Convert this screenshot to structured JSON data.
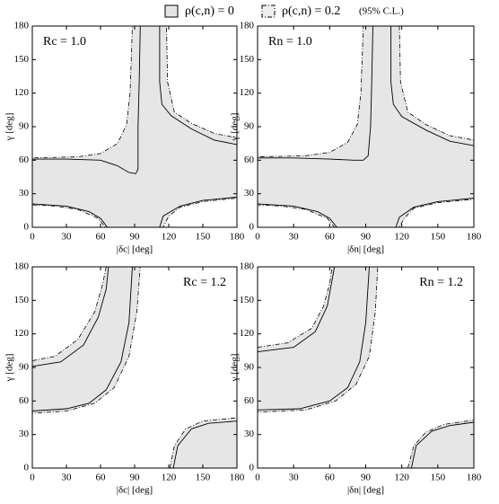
{
  "legend": {
    "items": [
      {
        "label": "ρ(c,n) = 0",
        "style": "solid",
        "color": "#e4e4e4"
      },
      {
        "label": "ρ(c,n) = 0.2",
        "style": "dashed",
        "color": "#eeeeee"
      }
    ],
    "note": "(95% C.L.)"
  },
  "chart_data": [
    {
      "type": "contour",
      "annotation": "Rc = 1.0",
      "annotation_corner": "top-left",
      "xlabel": "|δc|  [deg]",
      "ylabel": "γ  [deg]",
      "xlim": [
        0,
        180
      ],
      "ylim": [
        0,
        180
      ],
      "xticks": [
        0,
        30,
        60,
        90,
        120,
        150,
        180
      ],
      "yticks": [
        0,
        30,
        60,
        90,
        120,
        150,
        180
      ],
      "series": [
        {
          "style": "dashed",
          "color": "#e6e6e6",
          "regions": [
            {
              "x": [
                88,
                118,
                119,
                125,
                140,
                160,
                180,
                180,
                150,
                130,
                120,
                115,
                64,
                58,
                40,
                20,
                0,
                0,
                40,
                60,
                75,
                83,
                86,
                87
              ],
              "y": [
                180,
                180,
                130,
                103,
                93,
                84,
                80,
                26,
                23,
                18,
                10,
                0,
                0,
                8,
                16,
                19,
                20,
                62,
                63,
                66,
                75,
                92,
                120,
                150
              ]
            }
          ]
        },
        {
          "style": "solid",
          "color": "#000000",
          "curves": [
            {
              "x": [
                0,
                30,
                60,
                75,
                85,
                91,
                93,
                93,
                94,
                95
              ],
              "y": [
                61,
                61,
                60,
                55,
                49,
                48,
                52,
                90,
                130,
                180
              ]
            },
            {
              "x": [
                112,
                112,
                114,
                122,
                140,
                160,
                180
              ],
              "y": [
                180,
                130,
                110,
                100,
                88,
                78,
                74
              ]
            },
            {
              "x": [
                0,
                30,
                50,
                60,
                66
              ],
              "y": [
                21,
                19,
                14,
                8,
                0
              ]
            },
            {
              "x": [
                112,
                115,
                130,
                150,
                180
              ],
              "y": [
                0,
                10,
                19,
                24,
                27
              ]
            }
          ]
        }
      ]
    },
    {
      "type": "contour",
      "annotation": "Rn = 1.0",
      "annotation_corner": "top-left",
      "xlabel": "|δn|  [deg]",
      "ylabel": "γ  [deg]",
      "xlim": [
        0,
        180
      ],
      "ylim": [
        0,
        180
      ],
      "xticks": [
        0,
        30,
        60,
        90,
        120,
        150,
        180
      ],
      "yticks": [
        0,
        30,
        60,
        90,
        120,
        150,
        180
      ],
      "series": [
        {
          "style": "dashed",
          "color": "#e6e6e6",
          "regions": [
            {
              "x": [
                88,
                118,
                119,
                125,
                140,
                160,
                180,
                180,
                150,
                130,
                122,
                118,
                64,
                58,
                40,
                20,
                0,
                0,
                40,
                60,
                75,
                83,
                86,
                87
              ],
              "y": [
                180,
                180,
                130,
                103,
                92,
                82,
                78,
                25,
                22,
                17,
                8,
                0,
                0,
                8,
                16,
                19,
                20,
                63,
                64,
                67,
                76,
                92,
                120,
                150
              ]
            }
          ]
        },
        {
          "style": "solid",
          "color": "#000000",
          "curves": [
            {
              "x": [
                0,
                30,
                60,
                80,
                88,
                92,
                94,
                95,
                96
              ],
              "y": [
                62,
                62,
                61,
                60,
                60,
                64,
                90,
                130,
                180
              ]
            },
            {
              "x": [
                111,
                111,
                113,
                120,
                140,
                160,
                180
              ],
              "y": [
                180,
                130,
                110,
                99,
                87,
                77,
                73
              ]
            },
            {
              "x": [
                0,
                30,
                50,
                60,
                66
              ],
              "y": [
                21,
                19,
                14,
                8,
                0
              ]
            },
            {
              "x": [
                115,
                118,
                130,
                150,
                180
              ],
              "y": [
                0,
                9,
                18,
                23,
                26
              ]
            }
          ]
        }
      ]
    },
    {
      "type": "contour",
      "annotation": "Rc = 1.2",
      "annotation_corner": "top-right",
      "xlabel": "|δc|  [deg]",
      "ylabel": "γ  [deg]",
      "xlim": [
        0,
        180
      ],
      "ylim": [
        0,
        180
      ],
      "xticks": [
        0,
        30,
        60,
        90,
        120,
        150,
        180
      ],
      "yticks": [
        0,
        30,
        60,
        90,
        120,
        150,
        180
      ],
      "series": [
        {
          "style": "dashed",
          "color": "#e6e6e6",
          "regions": [
            {
              "x": [
                0,
                20,
                40,
                55,
                62,
                65,
                95,
                92,
                85,
                72,
                55,
                30,
                0
              ],
              "y": [
                96,
                100,
                115,
                140,
                165,
                180,
                180,
                140,
                100,
                72,
                58,
                51,
                49
              ]
            },
            {
              "x": [
                121,
                125,
                135,
                150,
                180,
                180
              ],
              "y": [
                0,
                20,
                35,
                42,
                45,
                0
              ]
            }
          ]
        },
        {
          "style": "solid",
          "color": "#000000",
          "curves": [
            {
              "x": [
                0,
                25,
                45,
                58,
                65,
                67
              ],
              "y": [
                91,
                95,
                110,
                135,
                160,
                180
              ]
            },
            {
              "x": [
                0,
                30,
                50,
                65,
                78,
                85,
                88
              ],
              "y": [
                51,
                53,
                58,
                70,
                95,
                130,
                180
              ]
            },
            {
              "x": [
                124,
                128,
                140,
                155,
                180
              ],
              "y": [
                0,
                20,
                35,
                40,
                42
              ]
            }
          ]
        }
      ]
    },
    {
      "type": "contour",
      "annotation": "Rn = 1.2",
      "annotation_corner": "top-right",
      "xlabel": "|δn|  [deg]",
      "ylabel": "γ  [deg]",
      "xlim": [
        0,
        180
      ],
      "ylim": [
        0,
        180
      ],
      "xticks": [
        0,
        30,
        60,
        90,
        120,
        150,
        180
      ],
      "yticks": [
        0,
        30,
        60,
        90,
        120,
        150,
        180
      ],
      "series": [
        {
          "style": "dashed",
          "color": "#e6e6e6",
          "regions": [
            {
              "x": [
                0,
                25,
                45,
                55,
                60,
                62,
                100,
                98,
                93,
                82,
                65,
                40,
                0
              ],
              "y": [
                108,
                112,
                125,
                145,
                165,
                180,
                180,
                140,
                100,
                75,
                60,
                52,
                50
              ]
            },
            {
              "x": [
                125,
                130,
                140,
                155,
                180,
                180
              ],
              "y": [
                0,
                20,
                32,
                39,
                43,
                0
              ]
            }
          ]
        },
        {
          "style": "solid",
          "color": "#000000",
          "curves": [
            {
              "x": [
                0,
                30,
                48,
                58,
                64
              ],
              "y": [
                104,
                108,
                122,
                145,
                180
              ]
            },
            {
              "x": [
                0,
                35,
                60,
                75,
                85,
                90,
                93
              ],
              "y": [
                52,
                53,
                60,
                72,
                95,
                130,
                180
              ]
            },
            {
              "x": [
                128,
                132,
                145,
                160,
                180
              ],
              "y": [
                0,
                20,
                33,
                38,
                41
              ]
            }
          ]
        }
      ]
    }
  ]
}
